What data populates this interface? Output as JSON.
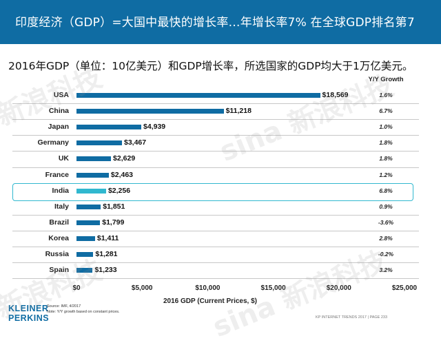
{
  "header": {
    "title": "印度经济（GDP）=大国中最快的增长率…年增长率7%   在全球GDP排名第7"
  },
  "subtitle": "2016年GDP（单位：10亿美元）和GDP增长率，所选国家的GDP均大于1万亿美元。",
  "chart_data": {
    "type": "bar",
    "orientation": "horizontal",
    "categories": [
      "USA",
      "China",
      "Japan",
      "Germany",
      "UK",
      "France",
      "India",
      "Italy",
      "Brazil",
      "Korea",
      "Russia",
      "Spain"
    ],
    "values": [
      18569,
      11218,
      4939,
      3467,
      2629,
      2463,
      2256,
      1851,
      1799,
      1411,
      1281,
      1233
    ],
    "value_labels": [
      "$18,569",
      "$11,218",
      "$4,939",
      "$3,467",
      "$2,629",
      "$2,463",
      "$2,256",
      "$1,851",
      "$1,799",
      "$1,411",
      "$1,281",
      "$1,233"
    ],
    "growth_header": "Y/Y Growth",
    "growth": [
      "1.6%",
      "6.7%",
      "1.0%",
      "1.8%",
      "1.8%",
      "1.2%",
      "6.8%",
      "0.9%",
      "-3.6%",
      "2.8%",
      "-0.2%",
      "3.2%"
    ],
    "highlight": "India",
    "xlabel": "2016 GDP (Current Prices, $)",
    "xlim": [
      0,
      25000
    ],
    "xticks": [
      "$0",
      "$5,000",
      "$10,000",
      "$15,000",
      "$20,000",
      "$25,000"
    ],
    "colors": {
      "bar": "#0f6ca3",
      "highlight": "#30b8cf"
    }
  },
  "footer": {
    "logo_line1": "KLEINER",
    "logo_line2": "PERKINS",
    "source_line1": "Source: IMF, 4/2017",
    "source_line2": "Note: Y/Y growth based on constant prices.",
    "page": "KP INTERNET TRENDS 2017  |  PAGE 233"
  },
  "watermarks": [
    "sina 新浪科技",
    "新浪科技",
    "sina 新浪科技",
    "新浪科技"
  ]
}
